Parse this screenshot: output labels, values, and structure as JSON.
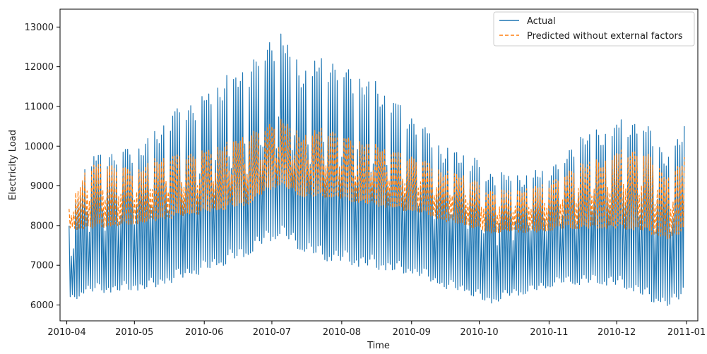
{
  "chart_data": {
    "type": "line",
    "title": "",
    "xlabel": "Time",
    "ylabel": "Electricity Load",
    "x_range": [
      "2010-03-29",
      "2011-01-06"
    ],
    "ylim": [
      5600,
      13450
    ],
    "x_ticks": [
      "2010-04",
      "2010-05",
      "2010-06",
      "2010-07",
      "2010-08",
      "2010-09",
      "2010-10",
      "2010-11",
      "2010-12",
      "2011-01"
    ],
    "y_ticks": [
      6000,
      7000,
      8000,
      9000,
      10000,
      11000,
      12000,
      13000
    ],
    "grid": false,
    "legend_position": "top-right",
    "sampling": "hourly, shown as daily max/min envelope",
    "series": [
      {
        "name": "Actual",
        "color": "#1f77b4",
        "line_style": "solid",
        "date_anchors": [
          "2010-04-02",
          "2010-04-10",
          "2010-04-20",
          "2010-05-01",
          "2010-05-10",
          "2010-05-20",
          "2010-06-01",
          "2010-06-10",
          "2010-06-20",
          "2010-06-30",
          "2010-07-05",
          "2010-07-15",
          "2010-07-25",
          "2010-08-05",
          "2010-08-15",
          "2010-08-25",
          "2010-09-05",
          "2010-09-15",
          "2010-09-25",
          "2010-10-05",
          "2010-10-15",
          "2010-10-25",
          "2010-11-05",
          "2010-11-15",
          "2010-11-25",
          "2010-12-05",
          "2010-12-15",
          "2010-12-25",
          "2010-12-31"
        ],
        "daily_peak": [
          8100,
          9700,
          9900,
          10000,
          10400,
          11000,
          11300,
          11800,
          12000,
          12700,
          12900,
          12000,
          12300,
          11900,
          11700,
          11200,
          10600,
          10000,
          9900,
          9400,
          9300,
          9400,
          9600,
          10300,
          10500,
          10800,
          10500,
          9700,
          10800
        ],
        "daily_trough": [
          6050,
          6300,
          6300,
          6350,
          6400,
          6600,
          6800,
          7000,
          7200,
          7600,
          7700,
          7300,
          7100,
          7000,
          6900,
          6800,
          6700,
          6400,
          6300,
          6000,
          6200,
          6300,
          6500,
          6500,
          6500,
          6400,
          6100,
          5900,
          6300
        ]
      },
      {
        "name": "Predicted without external factors",
        "color": "#ff7f0e",
        "line_style": "dashed",
        "date_anchors": [
          "2010-04-02",
          "2010-04-10",
          "2010-04-20",
          "2010-05-01",
          "2010-05-10",
          "2010-05-20",
          "2010-06-01",
          "2010-06-10",
          "2010-06-20",
          "2010-06-30",
          "2010-07-05",
          "2010-07-15",
          "2010-07-25",
          "2010-08-05",
          "2010-08-15",
          "2010-08-25",
          "2010-09-05",
          "2010-09-15",
          "2010-09-25",
          "2010-10-05",
          "2010-10-15",
          "2010-10-25",
          "2010-11-05",
          "2010-11-15",
          "2010-11-25",
          "2010-12-05",
          "2010-12-15",
          "2010-12-25",
          "2010-12-31"
        ],
        "daily_peak": [
          8450,
          9500,
          9600,
          9400,
          9700,
          9800,
          9900,
          10100,
          10300,
          10600,
          10700,
          10300,
          10500,
          10200,
          10100,
          9900,
          9700,
          9400,
          9300,
          8900,
          8900,
          9000,
          9200,
          9600,
          9700,
          10000,
          9800,
          9200,
          9850
        ],
        "daily_trough": [
          7900,
          7900,
          7950,
          8000,
          8100,
          8200,
          8300,
          8400,
          8500,
          8900,
          9000,
          8700,
          8700,
          8600,
          8500,
          8400,
          8300,
          8100,
          8000,
          7800,
          7850,
          7800,
          7900,
          7900,
          7900,
          7900,
          7800,
          7600,
          7900
        ]
      }
    ]
  }
}
